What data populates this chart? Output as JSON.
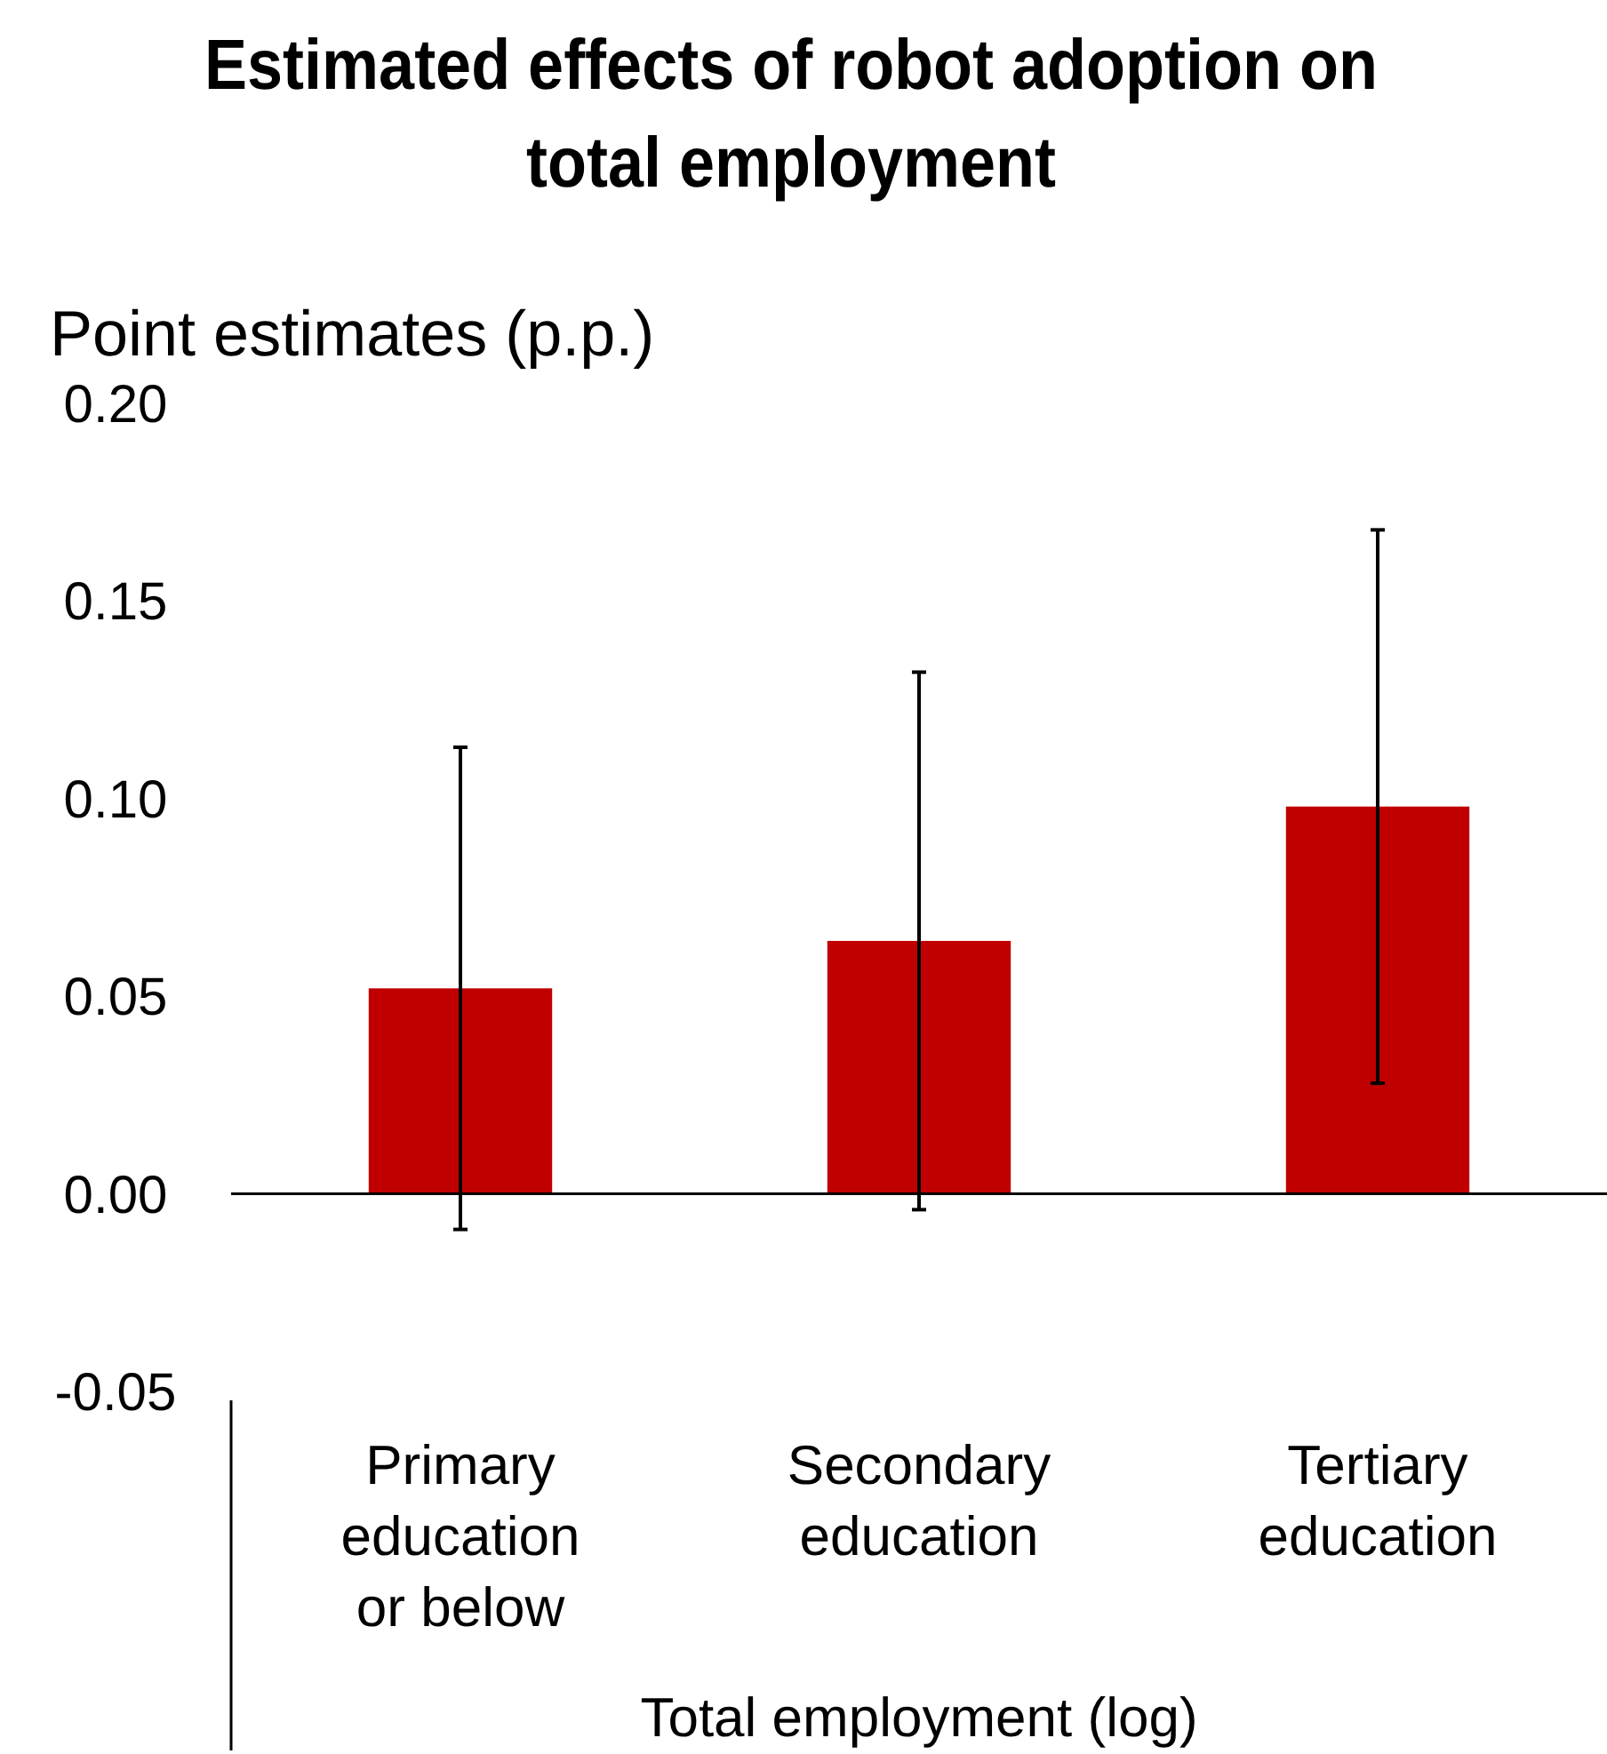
{
  "chart_data": {
    "type": "bar",
    "title": "Estimated effects of robot adoption on total employment",
    "ylabel": "Point estimates (p.p.)",
    "xlabel": "Total employment (log)",
    "categories": [
      "Primary education or below",
      "Secondary education",
      "Tertiary education"
    ],
    "values": [
      0.052,
      0.064,
      0.098
    ],
    "color": "#c00000",
    "errors": [
      [
        -0.009,
        0.113
      ],
      [
        -0.004,
        0.132
      ],
      [
        0.028,
        0.168
      ]
    ],
    "ylim": [
      -0.05,
      0.2
    ],
    "yticks": [
      {
        "value": -0.05,
        "label": "-0.05"
      },
      {
        "value": 0,
        "label": "0.00"
      },
      {
        "value": 0.05,
        "label": "0.05"
      },
      {
        "value": 0.1,
        "label": "0.10"
      },
      {
        "value": 0.15,
        "label": "0.15"
      },
      {
        "value": 0.2,
        "label": "0.20"
      }
    ],
    "orientation": "vertical"
  }
}
